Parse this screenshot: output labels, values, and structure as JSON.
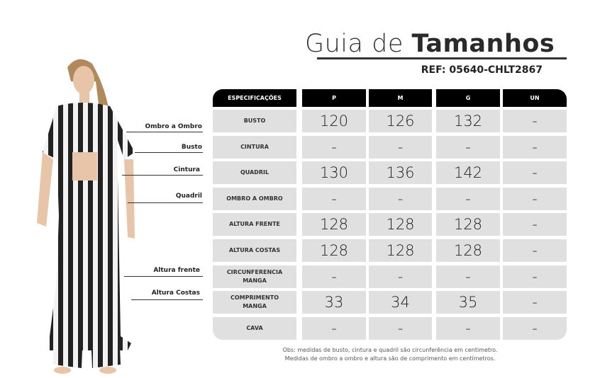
{
  "title": {
    "light": "Guia de ",
    "bold": "Tamanhos"
  },
  "ref": "REF: 05640-CHLT2867",
  "header": [
    "ESPECIFICAÇÕES",
    "P",
    "M",
    "G",
    "UN"
  ],
  "rows": [
    {
      "label": "BUSTO",
      "values": [
        "120",
        "126",
        "132",
        "-"
      ]
    },
    {
      "label": "CINTURA",
      "values": [
        "-",
        "-",
        "-",
        "-"
      ]
    },
    {
      "label": "QUADRIL",
      "values": [
        "130",
        "136",
        "142",
        "-"
      ]
    },
    {
      "label": "OMBRO A OMBRO",
      "values": [
        "-",
        "-",
        "-",
        "-"
      ]
    },
    {
      "label": "ALTURA FRENTE",
      "values": [
        "128",
        "128",
        "128",
        "-"
      ]
    },
    {
      "label": "ALTURA COSTAS",
      "values": [
        "128",
        "128",
        "128",
        "-"
      ]
    },
    {
      "label": "CIRCUNFERENCIA MANGA",
      "values": [
        "-",
        "-",
        "-",
        "-"
      ]
    },
    {
      "label": "COMPRIMENTO MANGA",
      "values": [
        "33",
        "34",
        "35",
        "-"
      ]
    },
    {
      "label": "CAVA",
      "values": [
        "-",
        "-",
        "-",
        "-"
      ]
    }
  ],
  "note": [
    "Obs: medidas de busto, cintura e quadril são circunferência em centimetro.",
    "Medidas de ombro a ombro e altura são de comprimento em centímetros."
  ],
  "figure_labels": [
    "Ombro a Ombro",
    "Busto",
    "Cintura",
    "Quadril",
    "Altura frente",
    "Altura Costas"
  ]
}
